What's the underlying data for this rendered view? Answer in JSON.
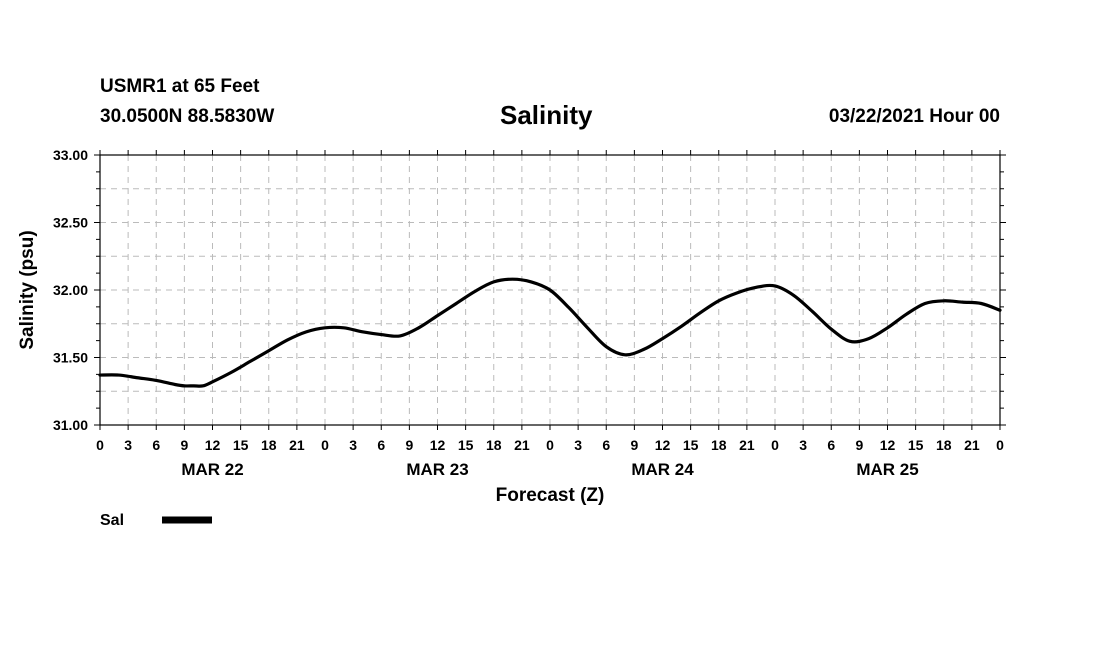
{
  "header": {
    "station": "USMR1 at 65 Feet",
    "coords": "30.0500N 88.5830W",
    "title": "Salinity",
    "stamp": "03/22/2021 Hour 00"
  },
  "chart_data": {
    "type": "line",
    "title": "Salinity",
    "xlabel": "Forecast (Z)",
    "ylabel": "Salinity (psu)",
    "ylim": [
      31.0,
      33.0
    ],
    "yticks": [
      "31.00",
      "31.50",
      "32.00",
      "32.50",
      "33.00"
    ],
    "xlim_hours": [
      0,
      96
    ],
    "hour_tick_labels": [
      "0",
      "3",
      "6",
      "9",
      "12",
      "15",
      "18",
      "21",
      "0",
      "3",
      "6",
      "9",
      "12",
      "15",
      "18",
      "21",
      "0",
      "3",
      "6",
      "9",
      "12",
      "15",
      "18",
      "21",
      "0",
      "3",
      "6",
      "9",
      "12",
      "15",
      "18",
      "21",
      "0"
    ],
    "day_labels": [
      {
        "label": "MAR 22",
        "hour": 12
      },
      {
        "label": "MAR 23",
        "hour": 36
      },
      {
        "label": "MAR 24",
        "hour": 60
      },
      {
        "label": "MAR 25",
        "hour": 84
      }
    ],
    "grid": true,
    "legend": {
      "label": "Sal",
      "placement": "bottom-left"
    },
    "color": "#000000",
    "series": [
      {
        "name": "Sal",
        "x": [
          0,
          2,
          4,
          6,
          8,
          9,
          10,
          11,
          12,
          14,
          16,
          18,
          20,
          22,
          24,
          26,
          28,
          30,
          32,
          34,
          36,
          38,
          40,
          42,
          44,
          46,
          48,
          50,
          52,
          54,
          56,
          58,
          60,
          62,
          64,
          66,
          68,
          70,
          72,
          74,
          76,
          78,
          80,
          82,
          84,
          86,
          88,
          90,
          92,
          94,
          96
        ],
        "values": [
          31.37,
          31.37,
          31.35,
          31.33,
          31.3,
          31.29,
          31.29,
          31.29,
          31.32,
          31.39,
          31.47,
          31.55,
          31.63,
          31.69,
          31.72,
          31.72,
          31.69,
          31.67,
          31.66,
          31.72,
          31.81,
          31.9,
          31.99,
          32.06,
          32.08,
          32.06,
          32.0,
          31.87,
          31.72,
          31.58,
          31.52,
          31.56,
          31.64,
          31.73,
          31.83,
          31.92,
          31.98,
          32.02,
          32.03,
          31.96,
          31.84,
          31.71,
          31.62,
          31.64,
          31.72,
          31.82,
          31.9,
          31.92,
          31.91,
          31.9,
          31.85
        ]
      }
    ]
  }
}
